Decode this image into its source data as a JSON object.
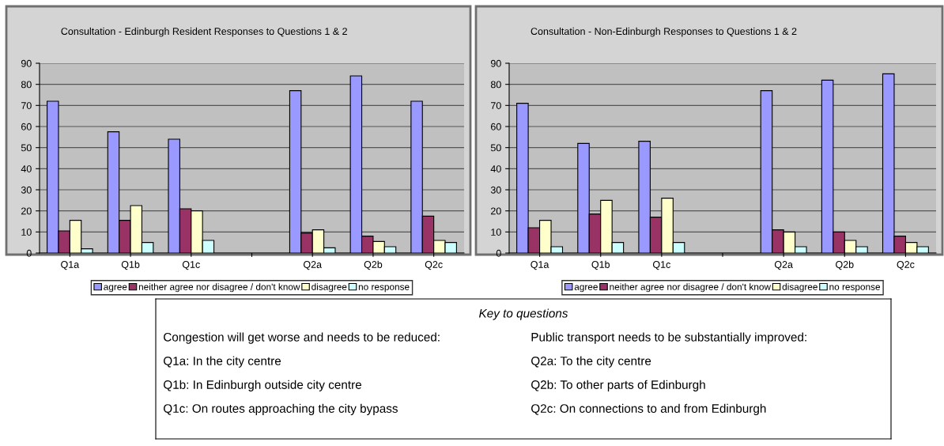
{
  "chart_data": [
    {
      "type": "bar",
      "title": "Consultation - Edinburgh Resident Responses to Questions 1 & 2",
      "categories": [
        "Q1a",
        "Q1b",
        "Q1c",
        null,
        "Q2a",
        "Q2b",
        "Q2c"
      ],
      "series": [
        {
          "name": "agree",
          "color": "#9999ff",
          "values": [
            72,
            57.5,
            54,
            null,
            77,
            84,
            72
          ]
        },
        {
          "name": "neither agree nor disagree / don't know",
          "color": "#993366",
          "values": [
            10.5,
            15.5,
            21,
            null,
            9.5,
            8,
            17.5
          ]
        },
        {
          "name": "disagree",
          "color": "#ffffcc",
          "values": [
            15.5,
            22.5,
            20,
            null,
            11,
            5.5,
            6
          ]
        },
        {
          "name": "no response",
          "color": "#ccffff",
          "values": [
            2,
            5,
            6,
            null,
            2.5,
            3,
            5
          ]
        }
      ],
      "ylim": [
        0,
        90
      ],
      "yticks": [
        0,
        10,
        20,
        30,
        40,
        50,
        60,
        70,
        80,
        90
      ],
      "grid": "y",
      "legend": "bottom"
    },
    {
      "type": "bar",
      "title": "Consultation - Non-Edinburgh Responses to Questions 1 & 2",
      "categories": [
        "Q1a",
        "Q1b",
        "Q1c",
        null,
        "Q2a",
        "Q2b",
        "Q2c"
      ],
      "series": [
        {
          "name": "agree",
          "color": "#9999ff",
          "values": [
            71,
            52,
            53,
            null,
            77,
            82,
            85
          ]
        },
        {
          "name": "neither agree nor disagree / don't know",
          "color": "#993366",
          "values": [
            12,
            18.5,
            17,
            null,
            11,
            10,
            8
          ]
        },
        {
          "name": "disagree",
          "color": "#ffffcc",
          "values": [
            15.5,
            25,
            26,
            null,
            10,
            6,
            5
          ]
        },
        {
          "name": "no response",
          "color": "#ccffff",
          "values": [
            3,
            5,
            5,
            null,
            3,
            3,
            3
          ]
        }
      ],
      "ylim": [
        0,
        90
      ],
      "yticks": [
        0,
        10,
        20,
        30,
        40,
        50,
        60,
        70,
        80,
        90
      ],
      "grid": "y",
      "legend": "bottom"
    },
    {
      "type": "other",
      "title": "Key to questions",
      "annotations": [
        "Congestion will get worse and needs to be reduced:",
        "Q1a: In the city centre",
        "Q1b: In Edinburgh outside city centre",
        "Q1c: On routes approaching the city bypass",
        "Public transport needs to be substantially improved:",
        "Q2a: To the city centre",
        "Q2b: To other parts of Edinburgh",
        "Q2c: On connections to and from Edinburgh"
      ]
    }
  ]
}
